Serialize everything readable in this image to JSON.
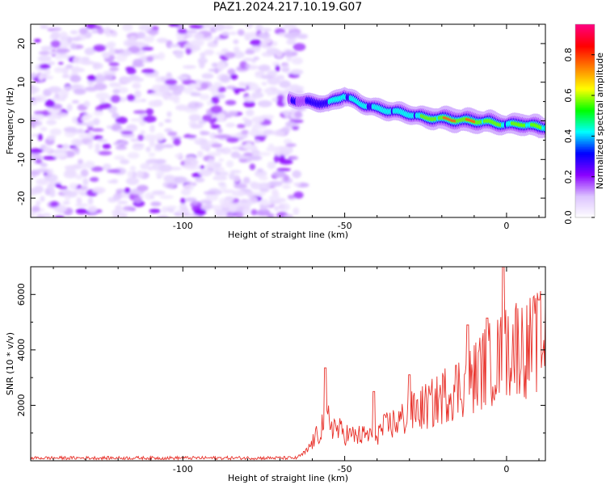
{
  "title": "PAZ1.2024.217.10.19.G07",
  "chart_data": [
    {
      "type": "heatmap",
      "xlabel": "Height of straight line (km)",
      "ylabel": "Frequency (Hz)",
      "xlim": [
        -147,
        12
      ],
      "ylim": [
        -25,
        25
      ],
      "x_ticks": [
        -100,
        -50,
        0
      ],
      "x_tick_labels": [
        "-100",
        "-50",
        "0"
      ],
      "y_ticks": [
        -20,
        -10,
        0,
        10,
        20
      ],
      "y_tick_labels": [
        "-20",
        "-10",
        "0",
        "10",
        "20"
      ],
      "colorbar": {
        "label": "Normalized spectral amplitude",
        "range": [
          0,
          0.95
        ],
        "ticks": [
          0.0,
          0.2,
          0.4,
          0.6,
          0.8
        ],
        "tick_labels": [
          "0.0",
          "0.2",
          "0.4",
          "0.6",
          "0.8"
        ],
        "colormap": [
          "#ffffff",
          "#dcc3ff",
          "#8a00ff",
          "#0000ff",
          "#00ffff",
          "#00ff00",
          "#ffff00",
          "#ff8000",
          "#ff0000",
          "#ff0080"
        ]
      },
      "noise_region": {
        "x_range": [
          -147,
          -63
        ],
        "y_range": [
          -25,
          25
        ]
      },
      "ridge": {
        "x": [
          -67,
          -60,
          -55,
          -50,
          -45,
          -40,
          -35,
          -30,
          -25,
          -20,
          -15,
          -10,
          -5,
          0,
          5,
          10,
          12
        ],
        "y": [
          5.5,
          4.8,
          4.5,
          6.5,
          4.5,
          3.2,
          2.5,
          1.8,
          0.8,
          0.6,
          0.2,
          0.0,
          -0.3,
          -1.0,
          -0.8,
          -1.5,
          -1.6
        ],
        "amplitude": [
          0.25,
          0.35,
          0.45,
          0.55,
          0.45,
          0.5,
          0.55,
          0.5,
          0.6,
          0.75,
          0.8,
          0.75,
          0.7,
          0.55,
          0.65,
          0.7,
          0.45
        ]
      }
    },
    {
      "type": "line",
      "xlabel": "Height of straight line (km)",
      "ylabel": "SNR (10 * v/v)",
      "xlim": [
        -147,
        12
      ],
      "ylim": [
        0,
        7000
      ],
      "x_ticks": [
        -100,
        -50,
        0
      ],
      "x_tick_labels": [
        "-100",
        "-50",
        "0"
      ],
      "y_ticks": [
        2000,
        4000,
        6000
      ],
      "y_tick_labels": [
        "2000",
        "4000",
        "6000"
      ],
      "color": "#e8312a",
      "series_trend": {
        "x": [
          -147,
          -65,
          -62,
          -58,
          -56,
          -52,
          -48,
          -44,
          -40,
          -36,
          -32,
          -30,
          -26,
          -22,
          -18,
          -14,
          -10,
          -8,
          -5,
          -2,
          0,
          2,
          4,
          6,
          8,
          10,
          12
        ],
        "y": [
          100,
          100,
          300,
          1000,
          1600,
          1100,
          900,
          900,
          1000,
          1300,
          1500,
          1700,
          1900,
          2100,
          2500,
          2700,
          3000,
          3300,
          3500,
          3700,
          3900,
          4200,
          4200,
          4000,
          4200,
          4300,
          4500
        ]
      },
      "peaks": [
        {
          "x": -56,
          "y": 3350
        },
        {
          "x": -41,
          "y": 2500
        },
        {
          "x": -30,
          "y": 3100
        },
        {
          "x": -12,
          "y": 4900
        },
        {
          "x": -6,
          "y": 5150
        },
        {
          "x": -1,
          "y": 7000
        },
        {
          "x": 10,
          "y": 5800
        }
      ]
    }
  ]
}
